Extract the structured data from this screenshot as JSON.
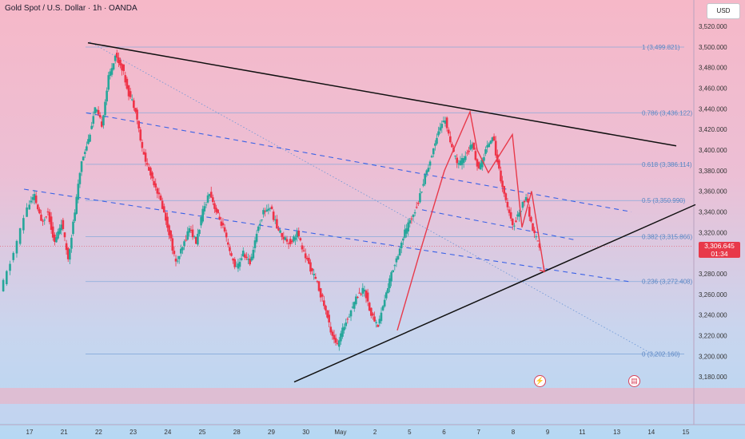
{
  "header": {
    "symbol_label": "Gold Spot / U.S. Dollar · 1h · OANDA",
    "currency_button": "USD"
  },
  "price_tag": {
    "price": "3,306.645",
    "countdown": "01:34",
    "color": "#e8394a"
  },
  "events": [
    {
      "icon": "lightning-icon",
      "glyph": "⚡"
    },
    {
      "icon": "us-flag-icon",
      "glyph": "▤"
    }
  ],
  "colors": {
    "up": "#26a69a",
    "down": "#ef3348",
    "fib": "#7fa7d9",
    "dash": "#3a62e6",
    "trend": "#111111",
    "pattern": "#e8394a"
  },
  "chart_data": {
    "type": "candlestick",
    "title": "Gold Spot / U.S. Dollar · 1h · OANDA",
    "ylim": [
      3170,
      3530
    ],
    "y_ticks": [
      3180,
      3200,
      3220,
      3240,
      3260,
      3280,
      3300,
      3320,
      3340,
      3360,
      3380,
      3400,
      3420,
      3440,
      3460,
      3480,
      3500,
      3520
    ],
    "y_tick_labels": [
      "3,180.000",
      "3,200.000",
      "3,220.000",
      "3,240.000",
      "3,260.000",
      "3,280.000",
      "3,300.000",
      "3,320.000",
      "3,340.000",
      "3,360.000",
      "3,380.000",
      "3,400.000",
      "3,420.000",
      "3,440.000",
      "3,460.000",
      "3,480.000",
      "3,500.000",
      "3,520.000"
    ],
    "x_tick_labels": [
      "17",
      "21",
      "22",
      "23",
      "24",
      "25",
      "28",
      "29",
      "30",
      "May",
      "2",
      "5",
      "6",
      "7",
      "8",
      "9",
      "11",
      "13",
      "14",
      "15"
    ],
    "x_tick_index": [
      0,
      1,
      2,
      3,
      4,
      5,
      6,
      7,
      8,
      9,
      10,
      11,
      12,
      13,
      14,
      15,
      16,
      17,
      18,
      19
    ],
    "current_price": 3306.645,
    "fibonacci": [
      {
        "level": 1,
        "price": 3499.821,
        "label": "1 (3,499.821)"
      },
      {
        "level": 0.786,
        "price": 3436.122,
        "label": "0.786 (3,436.122)"
      },
      {
        "level": 0.618,
        "price": 3386.114,
        "label": "0.618 (3,386.114)"
      },
      {
        "level": 0.5,
        "price": 3350.99,
        "label": "0.5 (3,350.990)"
      },
      {
        "level": 0.382,
        "price": 3315.866,
        "label": "0.382 (3,315.866)"
      },
      {
        "level": 0.236,
        "price": 3272.408,
        "label": "0.236 (3,272.408)"
      },
      {
        "level": 0,
        "price": 3202.16,
        "label": "0 (3,202.160)"
      }
    ],
    "price_path": [
      [
        0,
        3262
      ],
      [
        2,
        3300
      ],
      [
        4,
        3345
      ],
      [
        5,
        3355
      ],
      [
        6,
        3330
      ],
      [
        7,
        3340
      ],
      [
        8,
        3310
      ],
      [
        9,
        3330
      ],
      [
        10,
        3295
      ],
      [
        11,
        3340
      ],
      [
        12,
        3390
      ],
      [
        13,
        3410
      ],
      [
        14,
        3440
      ],
      [
        15,
        3425
      ],
      [
        16,
        3470
      ],
      [
        17,
        3492
      ],
      [
        18,
        3480
      ],
      [
        19,
        3455
      ],
      [
        20,
        3440
      ],
      [
        21,
        3400
      ],
      [
        22,
        3380
      ],
      [
        23,
        3365
      ],
      [
        24,
        3345
      ],
      [
        25,
        3320
      ],
      [
        26,
        3290
      ],
      [
        27,
        3305
      ],
      [
        28,
        3325
      ],
      [
        29,
        3310
      ],
      [
        30,
        3340
      ],
      [
        31,
        3360
      ],
      [
        32,
        3340
      ],
      [
        33,
        3325
      ],
      [
        34,
        3300
      ],
      [
        35,
        3285
      ],
      [
        36,
        3300
      ],
      [
        37,
        3290
      ],
      [
        38,
        3320
      ],
      [
        39,
        3340
      ],
      [
        40,
        3345
      ],
      [
        41,
        3325
      ],
      [
        42,
        3315
      ],
      [
        43,
        3310
      ],
      [
        44,
        3320
      ],
      [
        45,
        3300
      ],
      [
        46,
        3285
      ],
      [
        47,
        3270
      ],
      [
        48,
        3250
      ],
      [
        49,
        3225
      ],
      [
        50,
        3210
      ],
      [
        51,
        3230
      ],
      [
        52,
        3245
      ],
      [
        53,
        3260
      ],
      [
        54,
        3265
      ],
      [
        55,
        3240
      ],
      [
        56,
        3230
      ],
      [
        57,
        3255
      ],
      [
        58,
        3280
      ],
      [
        59,
        3300
      ],
      [
        60,
        3320
      ],
      [
        61,
        3335
      ],
      [
        62,
        3350
      ],
      [
        63,
        3375
      ],
      [
        64,
        3395
      ],
      [
        65,
        3420
      ],
      [
        66,
        3430
      ],
      [
        67,
        3400
      ],
      [
        68,
        3385
      ],
      [
        69,
        3395
      ],
      [
        70,
        3405
      ],
      [
        71,
        3380
      ],
      [
        72,
        3400
      ],
      [
        73,
        3415
      ],
      [
        74,
        3380
      ],
      [
        75,
        3350
      ],
      [
        76,
        3325
      ],
      [
        77,
        3340
      ],
      [
        78,
        3355
      ],
      [
        79,
        3320
      ],
      [
        80,
        3306.645
      ]
    ]
  }
}
